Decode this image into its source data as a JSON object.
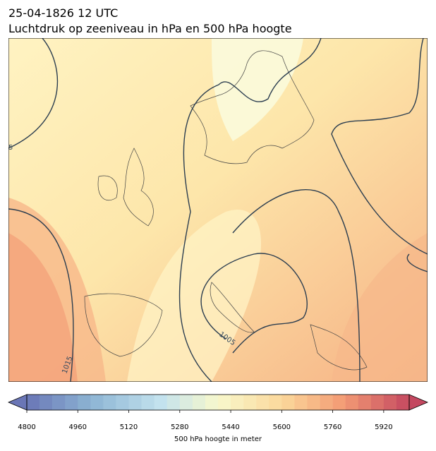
{
  "header": {
    "title_line1": "25-04-1826 12 UTC",
    "title_line2": "Luchtdruk op zeeniveau in hPa en 500 hPa hoogte"
  },
  "map": {
    "contour_labels": [
      "1015",
      "1005",
      "5"
    ]
  },
  "colorbar": {
    "label": "500 hPa hoogte in meter",
    "lim": [
      4800,
      6000
    ],
    "ticks": [
      4800,
      4960,
      5120,
      5280,
      5440,
      5600,
      5760,
      5920
    ],
    "levels": [
      4800,
      4840,
      4880,
      4920,
      4960,
      5000,
      5040,
      5080,
      5120,
      5160,
      5200,
      5240,
      5280,
      5320,
      5360,
      5400,
      5440,
      5480,
      5520,
      5560,
      5600,
      5640,
      5680,
      5720,
      5760,
      5800,
      5840,
      5880,
      5920,
      5960,
      6000
    ]
  }
}
